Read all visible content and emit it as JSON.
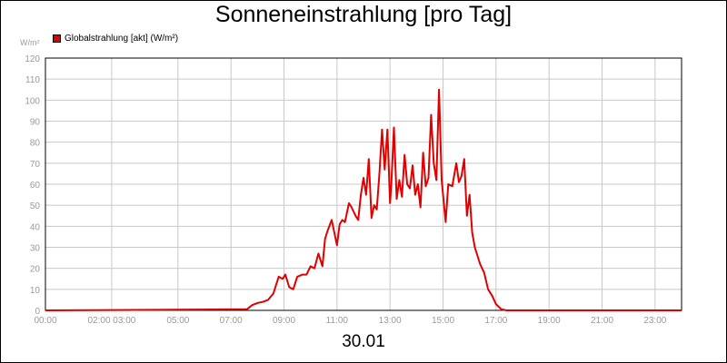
{
  "chart_data": {
    "type": "line",
    "title": "Sonneneinstrahlung [pro Tag]",
    "subtitle": "30.01",
    "ylabel": "W/m²",
    "ylim": [
      0,
      120
    ],
    "yticks": [
      0,
      10,
      20,
      30,
      40,
      50,
      60,
      70,
      80,
      90,
      100,
      110,
      120
    ],
    "xlim": [
      0,
      24
    ],
    "xticks": [
      {
        "pos": 0,
        "label": "00:00"
      },
      {
        "pos": 2.5,
        "label": "02:00 03:00"
      },
      {
        "pos": 5,
        "label": "05:00"
      },
      {
        "pos": 7,
        "label": "07:00"
      },
      {
        "pos": 9,
        "label": "09:00"
      },
      {
        "pos": 11,
        "label": "11:00"
      },
      {
        "pos": 13,
        "label": "13:00"
      },
      {
        "pos": 15,
        "label": "15:00"
      },
      {
        "pos": 17,
        "label": "17:00"
      },
      {
        "pos": 19,
        "label": "19:00"
      },
      {
        "pos": 21,
        "label": "21:00"
      },
      {
        "pos": 23,
        "label": "23:00"
      }
    ],
    "grid": true,
    "legend_position": "top-left",
    "series": [
      {
        "name": "Globalstrahlung [akt] (W/m²)",
        "color": "#e00000",
        "x": [
          0,
          7.6,
          7.8,
          8.0,
          8.2,
          8.4,
          8.6,
          8.8,
          8.95,
          9.05,
          9.2,
          9.35,
          9.5,
          9.7,
          9.85,
          10.0,
          10.15,
          10.3,
          10.45,
          10.55,
          10.65,
          10.8,
          10.9,
          11.0,
          11.1,
          11.2,
          11.3,
          11.45,
          11.55,
          11.7,
          11.8,
          11.9,
          12.0,
          12.1,
          12.2,
          12.3,
          12.4,
          12.5,
          12.6,
          12.7,
          12.8,
          12.9,
          13.0,
          13.05,
          13.15,
          13.25,
          13.35,
          13.45,
          13.55,
          13.65,
          13.75,
          13.85,
          13.95,
          14.05,
          14.15,
          14.25,
          14.35,
          14.45,
          14.55,
          14.65,
          14.75,
          14.85,
          14.95,
          15.1,
          15.2,
          15.35,
          15.5,
          15.6,
          15.7,
          15.8,
          15.9,
          16.0,
          16.1,
          16.2,
          16.4,
          16.55,
          16.7,
          16.85,
          17.0,
          17.2,
          17.4,
          17.6,
          24
        ],
        "y": [
          0,
          0.5,
          2.5,
          3.5,
          4,
          5,
          8,
          16,
          15,
          17,
          11,
          10,
          16,
          17,
          17,
          21,
          20,
          27,
          21,
          34,
          38,
          43,
          37,
          31,
          41,
          43,
          42,
          51,
          49,
          45,
          43,
          55,
          63,
          55,
          72,
          44,
          50,
          48,
          65,
          86,
          67,
          86,
          51,
          60,
          87,
          53,
          62,
          54,
          74,
          60,
          58,
          69,
          55,
          60,
          49,
          75,
          59,
          63,
          93,
          70,
          62,
          105,
          62,
          42,
          60,
          59,
          70,
          61,
          64,
          72,
          45,
          55,
          37,
          30,
          22,
          18,
          10,
          7,
          3,
          0.5,
          0,
          0,
          0
        ]
      }
    ]
  }
}
